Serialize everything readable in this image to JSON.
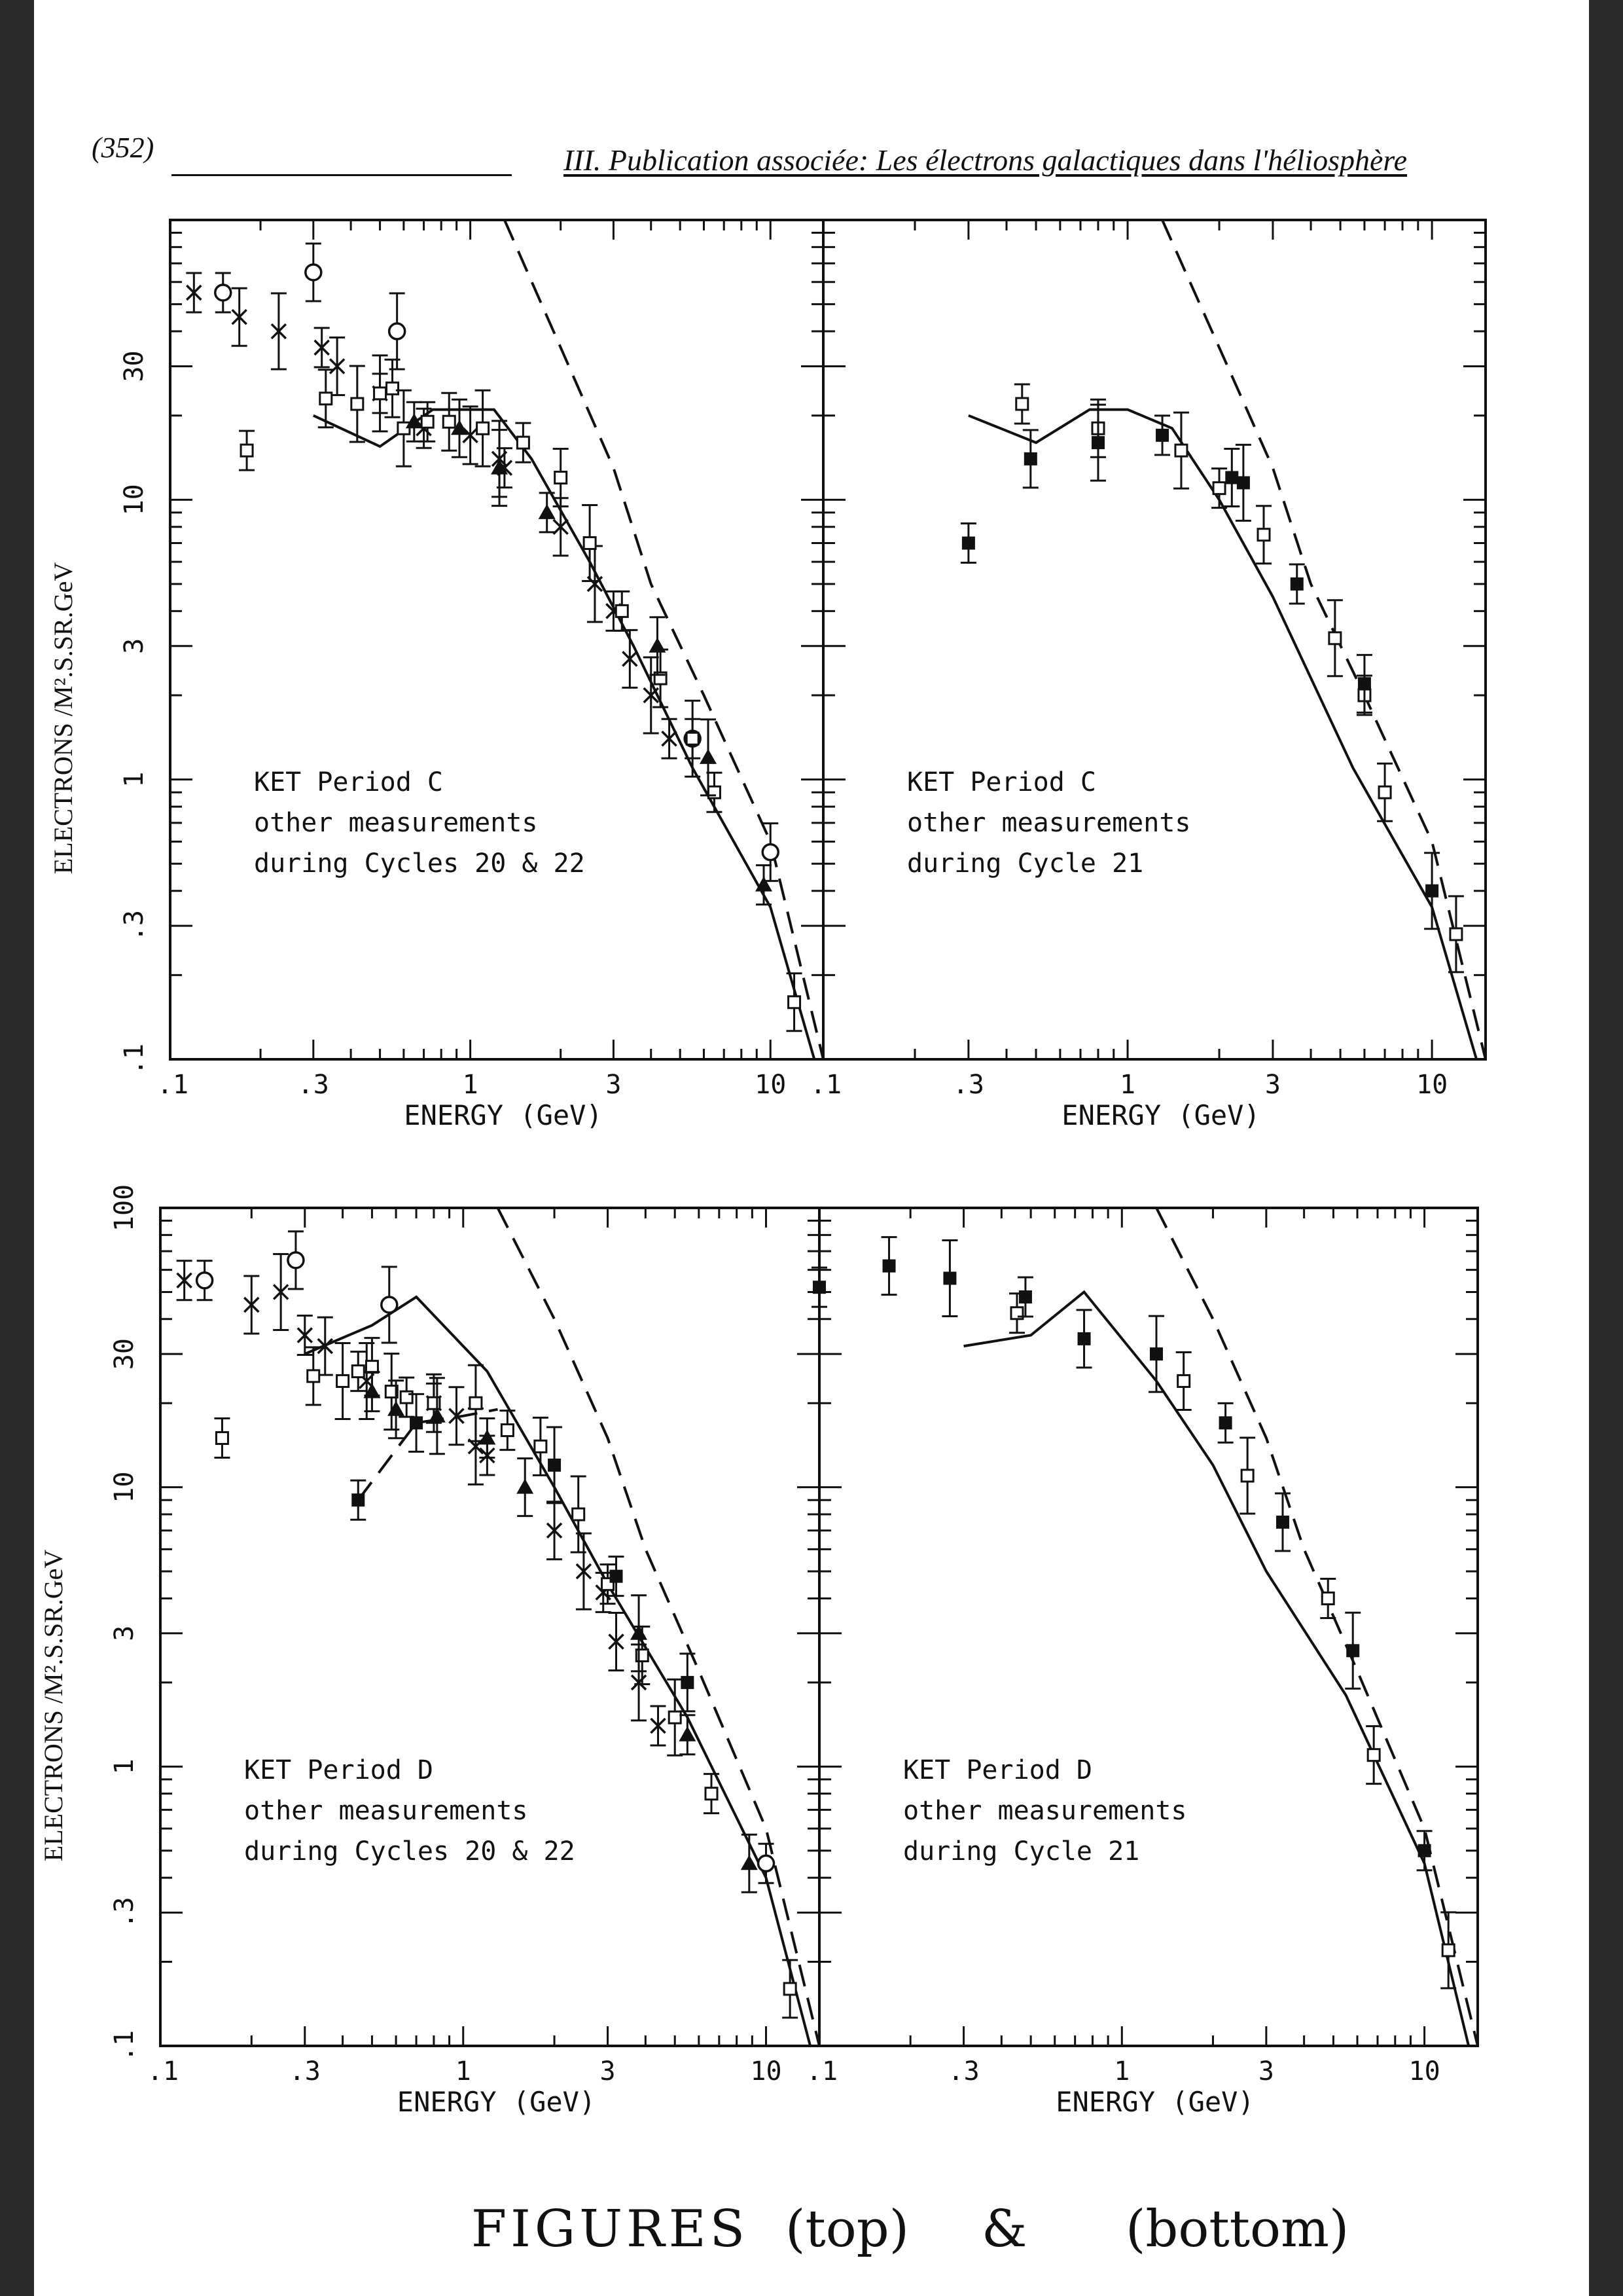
{
  "header": {
    "page_number": "(352)",
    "title": "III. Publication associée: Les électrons galactiques dans l'héliosphère"
  },
  "handwritten": {
    "figures": "FIGURES",
    "top": "(top)",
    "amp": "&",
    "bottom": "(bottom)"
  },
  "chart_data": [
    {
      "type": "scatter",
      "panel": "top-left",
      "xlabel": "ENERGY (GeV)",
      "ylabel": "ELECTRONS /M².S.SR.GeV",
      "xscale": "log",
      "yscale": "log",
      "xlim": [
        0.1,
        15
      ],
      "ylim": [
        0.1,
        100
      ],
      "xticks": [
        ".1",
        ".3",
        "1",
        "3",
        "10"
      ],
      "yticks": [
        ".1",
        ".3",
        "1",
        "3",
        "10",
        "30"
      ],
      "annotation": [
        "KET Period C",
        "other measurements",
        "during Cycles 20 & 22"
      ],
      "series": [
        {
          "style": "solid-line",
          "x": [
            0.3,
            0.5,
            0.75,
            1.2,
            1.6,
            2.5,
            3.5,
            5.5,
            10,
            14
          ],
          "y": [
            20,
            15.5,
            21,
            21,
            14,
            6,
            3,
            1.1,
            0.35,
            0.1
          ]
        },
        {
          "style": "dashed-line",
          "x": [
            1.3,
            2,
            3,
            4,
            6,
            10,
            15
          ],
          "y": [
            100,
            35,
            13,
            5,
            2,
            0.6,
            0.1
          ]
        },
        {
          "style": "cross",
          "x": [
            0.12,
            0.17,
            0.23,
            0.32,
            0.36,
            0.5,
            0.7,
            1.0,
            1.25,
            1.3,
            2.0,
            2.6,
            3.0,
            3.4,
            4.0,
            4.6
          ],
          "y": [
            55,
            45,
            40,
            35,
            30,
            24,
            18,
            17,
            14,
            13,
            8,
            5,
            4,
            2.7,
            2,
            1.4
          ]
        },
        {
          "style": "circle",
          "x": [
            0.15,
            0.3,
            0.57,
            5.5,
            10
          ],
          "y": [
            55,
            65,
            40,
            1.4,
            0.55
          ]
        },
        {
          "style": "open-square",
          "x": [
            0.18,
            0.33,
            0.42,
            0.5,
            0.55,
            0.6,
            0.72,
            0.85,
            1.1,
            1.5,
            2.0,
            2.5,
            3.2,
            4.3,
            5.5,
            6.5,
            12
          ],
          "y": [
            15,
            23,
            22,
            24,
            25,
            18,
            19,
            19,
            18,
            16,
            12,
            7,
            4,
            2.3,
            1.4,
            0.9,
            0.16
          ]
        },
        {
          "style": "filled-triangle",
          "x": [
            0.65,
            0.92,
            1.25,
            1.8,
            4.2,
            6.2,
            9.5
          ],
          "y": [
            19,
            18,
            13,
            9,
            3,
            1.2,
            0.42
          ]
        }
      ]
    },
    {
      "type": "scatter",
      "panel": "top-right",
      "xlabel": "ENERGY (GeV)",
      "xscale": "log",
      "yscale": "log",
      "xlim": [
        0.1,
        15
      ],
      "ylim": [
        0.1,
        100
      ],
      "xticks": [
        ".1",
        ".3",
        "1",
        "3",
        "10"
      ],
      "annotation": [
        "KET Period C",
        "other measurements",
        "during Cycle 21"
      ],
      "series": [
        {
          "style": "solid-line",
          "x": [
            0.3,
            0.5,
            0.75,
            1.0,
            1.4,
            2.0,
            3.0,
            5.5,
            10,
            14
          ],
          "y": [
            20,
            16,
            21,
            21,
            18,
            10,
            4.5,
            1.1,
            0.35,
            0.1
          ]
        },
        {
          "style": "dashed-line",
          "x": [
            1.3,
            2,
            3,
            4,
            6,
            10,
            15
          ],
          "y": [
            100,
            35,
            13,
            5,
            2,
            0.6,
            0.1
          ]
        },
        {
          "style": "open-square",
          "x": [
            0.45,
            0.8,
            1.5,
            2.0,
            2.8,
            4.8,
            6.0,
            7.0,
            12
          ],
          "y": [
            22,
            18,
            15,
            11,
            7.5,
            3.2,
            2.0,
            0.9,
            0.28
          ]
        },
        {
          "style": "filled-square",
          "x": [
            0.3,
            0.48,
            0.8,
            1.3,
            2.2,
            2.4,
            3.6,
            6.0,
            10
          ],
          "y": [
            7,
            14,
            16,
            17,
            12,
            11.5,
            5,
            2.2,
            0.4
          ]
        }
      ]
    },
    {
      "type": "scatter",
      "panel": "bottom-left",
      "xlabel": "ENERGY (GeV)",
      "ylabel": "ELECTRONS /M².S.SR.GeV",
      "xscale": "log",
      "yscale": "log",
      "xlim": [
        0.1,
        15
      ],
      "ylim": [
        0.1,
        100
      ],
      "xticks": [
        ".1",
        ".3",
        "1",
        "3",
        "10"
      ],
      "yticks": [
        ".1",
        ".3",
        "1",
        "3",
        "10",
        "30",
        "100"
      ],
      "annotation": [
        "KET Period D",
        "other measurements",
        "during Cycles 20 & 22"
      ],
      "series": [
        {
          "style": "solid-line",
          "x": [
            0.3,
            0.5,
            0.7,
            1.2,
            2.0,
            3.0,
            5.5,
            10,
            14
          ],
          "y": [
            30,
            38,
            48,
            26,
            10,
            4.5,
            1.5,
            0.4,
            0.1
          ]
        },
        {
          "style": "dashed-line",
          "x": [
            1.3,
            2,
            3,
            4,
            6,
            10,
            15
          ],
          "y": [
            100,
            40,
            15,
            6,
            2.2,
            0.6,
            0.1
          ]
        },
        {
          "style": "dashed-line",
          "x": [
            0.45,
            0.7,
            1.0,
            1.3
          ],
          "y": [
            9,
            17,
            18,
            19
          ]
        },
        {
          "style": "cross",
          "x": [
            0.12,
            0.2,
            0.25,
            0.3,
            0.35,
            0.48,
            0.8,
            0.95,
            1.1,
            1.2,
            2.0,
            2.5,
            2.9,
            3.2,
            3.8,
            4.4
          ],
          "y": [
            55,
            45,
            50,
            35,
            32,
            24,
            20,
            18,
            14,
            13,
            7,
            5,
            4.2,
            2.8,
            2.0,
            1.4
          ]
        },
        {
          "style": "circle",
          "x": [
            0.14,
            0.28,
            0.57,
            10
          ],
          "y": [
            55,
            65,
            45,
            0.45
          ]
        },
        {
          "style": "open-square",
          "x": [
            0.16,
            0.32,
            0.4,
            0.45,
            0.5,
            0.58,
            0.65,
            0.8,
            1.1,
            1.4,
            1.8,
            2.4,
            3.0,
            3.9,
            5.0,
            6.6,
            12
          ],
          "y": [
            15,
            25,
            24,
            26,
            27,
            22,
            21,
            20,
            20,
            16,
            14,
            8,
            4.5,
            2.5,
            1.5,
            0.8,
            0.16
          ]
        },
        {
          "style": "filled-triangle",
          "x": [
            0.5,
            0.6,
            0.82,
            1.2,
            1.6,
            3.8,
            5.5,
            8.8
          ],
          "y": [
            22,
            19,
            18,
            15,
            10,
            3,
            1.3,
            0.45
          ]
        },
        {
          "style": "filled-square",
          "x": [
            0.45,
            0.7,
            2.0,
            3.2,
            5.5
          ],
          "y": [
            9,
            17,
            12,
            4.8,
            2.0
          ]
        }
      ]
    },
    {
      "type": "scatter",
      "panel": "bottom-right",
      "xlabel": "ENERGY (GeV)",
      "xscale": "log",
      "yscale": "log",
      "xlim": [
        0.1,
        15
      ],
      "ylim": [
        0.1,
        100
      ],
      "xticks": [
        ".1",
        ".3",
        "1",
        "3",
        "10"
      ],
      "annotation": [
        "KET Period D",
        "other measurements",
        "during Cycle 21"
      ],
      "series": [
        {
          "style": "solid-line",
          "x": [
            0.3,
            0.5,
            0.75,
            1.3,
            2.0,
            3.0,
            5.5,
            10,
            14
          ],
          "y": [
            32,
            35,
            50,
            24,
            12,
            5,
            1.8,
            0.45,
            0.1
          ]
        },
        {
          "style": "dashed-line",
          "x": [
            1.3,
            2,
            3,
            4,
            6,
            10,
            15
          ],
          "y": [
            100,
            40,
            15,
            6,
            2.2,
            0.6,
            0.1
          ]
        },
        {
          "style": "open-square",
          "x": [
            0.45,
            1.6,
            2.6,
            4.8,
            6.8,
            12
          ],
          "y": [
            42,
            24,
            11,
            4,
            1.1,
            0.22
          ]
        },
        {
          "style": "filled-square",
          "x": [
            0.1,
            0.17,
            0.27,
            0.48,
            0.75,
            1.3,
            2.2,
            3.4,
            5.8,
            10
          ],
          "y": [
            52,
            62,
            56,
            48,
            34,
            30,
            17,
            7.5,
            2.6,
            0.5
          ]
        }
      ]
    }
  ]
}
